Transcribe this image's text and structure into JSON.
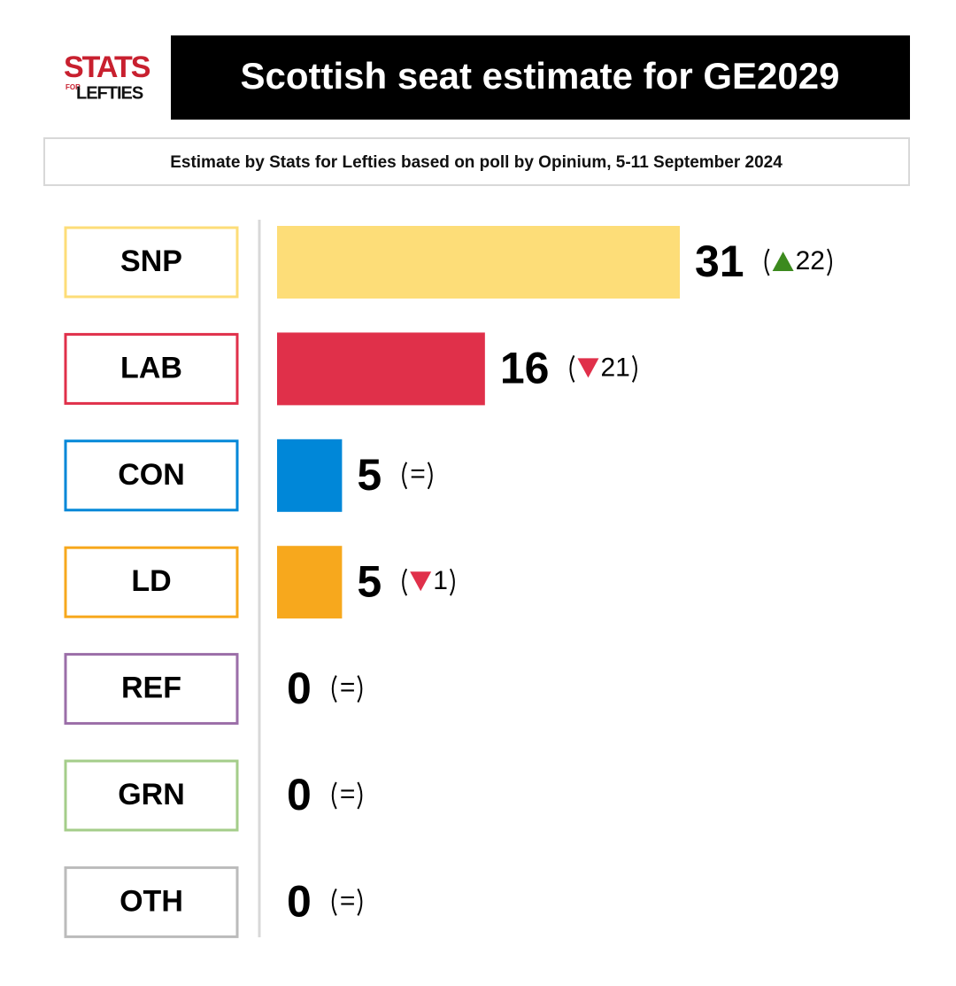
{
  "logo": {
    "top": "STATS",
    "small": "FOR",
    "bottom": "LEFTIES"
  },
  "chart_data": {
    "type": "bar",
    "orientation": "horizontal",
    "title": "Scottish seat estimate for GE2029",
    "subtitle": "Estimate by Stats for Lefties based on poll by Opinium, 5-11 September 2024",
    "categories": [
      "SNP",
      "LAB",
      "CON",
      "LD",
      "REF",
      "GRN",
      "OTH"
    ],
    "values": [
      31,
      16,
      5,
      5,
      0,
      0,
      0
    ],
    "colors": [
      "#fddd78",
      "#e0304a",
      "#0087d8",
      "#f7a81d",
      "#9b6ea8",
      "#a4cd8a",
      "#bbbbbb"
    ],
    "change_values": [
      22,
      -21,
      0,
      -1,
      0,
      0,
      0
    ],
    "change_labels": [
      "22",
      "21",
      "=",
      "1",
      "=",
      "=",
      "="
    ]
  }
}
